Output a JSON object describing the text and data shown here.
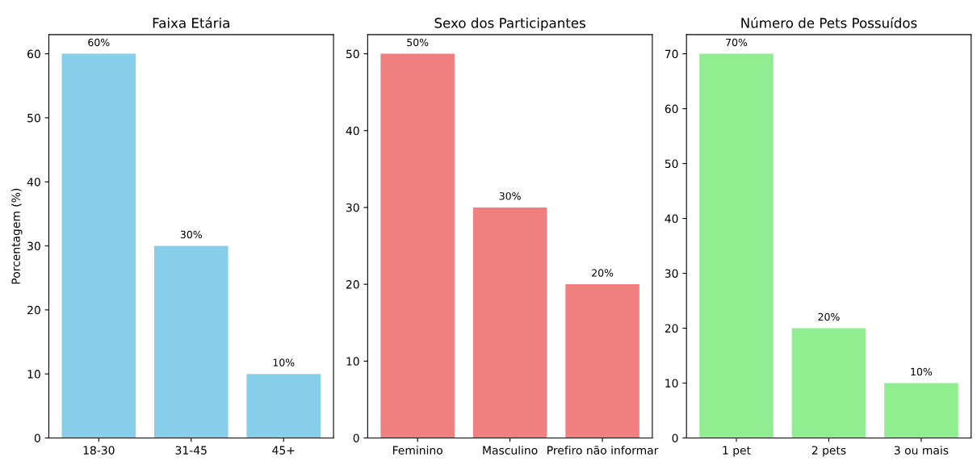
{
  "chart_data": [
    {
      "type": "bar",
      "title": "Faixa Etária",
      "ylabel": "Porcentagem (%)",
      "categories": [
        "18-30",
        "31-45",
        "45+"
      ],
      "values": [
        60,
        30,
        10
      ],
      "color": "#87ceeb",
      "value_labels": [
        "60%",
        "30%",
        "10%"
      ],
      "ylim": [
        0,
        63
      ],
      "yticks": [
        0,
        10,
        20,
        30,
        40,
        50,
        60
      ],
      "grid": false,
      "legend": false
    },
    {
      "type": "bar",
      "title": "Sexo dos Participantes",
      "categories": [
        "Feminino",
        "Masculino",
        "Prefiro não informar"
      ],
      "values": [
        50,
        30,
        20
      ],
      "color": "#f08080",
      "value_labels": [
        "50%",
        "30%",
        "20%"
      ],
      "ylim": [
        0,
        52.5
      ],
      "yticks": [
        0,
        10,
        20,
        30,
        40,
        50
      ],
      "grid": false,
      "legend": false
    },
    {
      "type": "bar",
      "title": "Número de Pets Possuídos",
      "categories": [
        "1 pet",
        "2 pets",
        "3 ou mais"
      ],
      "values": [
        70,
        20,
        10
      ],
      "color": "#90ee90",
      "value_labels": [
        "70%",
        "20%",
        "10%"
      ],
      "ylim": [
        0,
        73.5
      ],
      "yticks": [
        0,
        10,
        20,
        30,
        40,
        50,
        60,
        70
      ],
      "grid": false,
      "legend": false
    }
  ]
}
